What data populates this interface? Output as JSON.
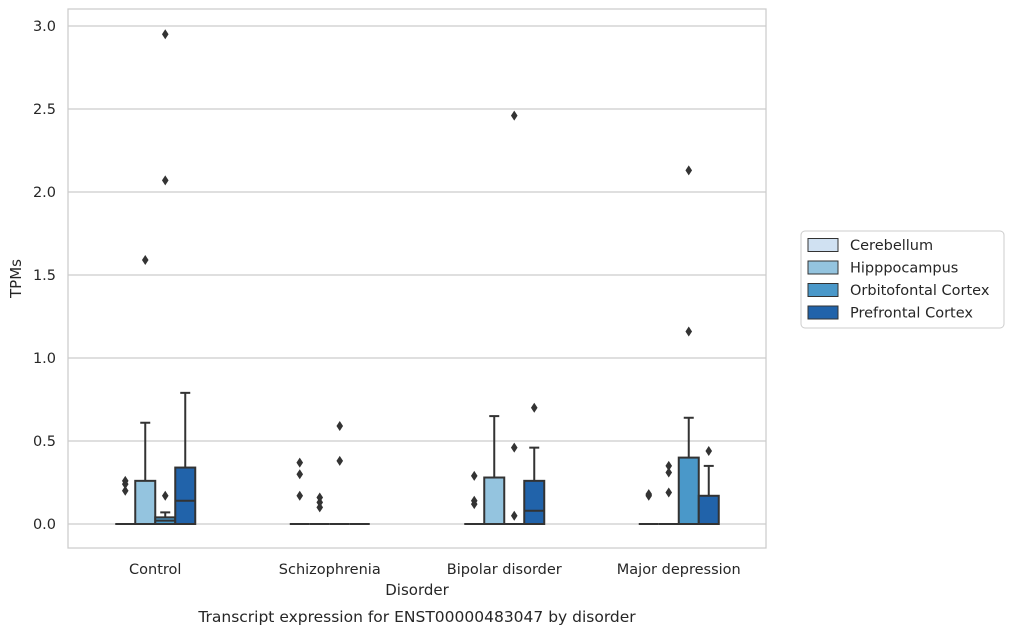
{
  "chart_data": {
    "type": "box",
    "caption": "Transcript expression for ENST00000483047 by disorder",
    "xlabel": "Disorder",
    "ylabel": "TPMs",
    "ylim": [
      -0.14,
      3.1
    ],
    "yticks": [
      "0.0",
      "0.5",
      "1.0",
      "1.5",
      "2.0",
      "2.5",
      "3.0"
    ],
    "grid": "horizontal",
    "legend_position": "right",
    "categories": [
      "Control",
      "Schizophrenia",
      "Bipolar disorder",
      "Major depression"
    ],
    "series": [
      {
        "name": "Cerebellum",
        "color": "#d0e1f2",
        "boxes": [
          {
            "q1": 0,
            "median": 0,
            "q3": 0,
            "whisker_low": 0,
            "whisker_high": 0,
            "outliers": [
              0.2,
              0.24,
              0.26
            ]
          },
          {
            "q1": 0,
            "median": 0,
            "q3": 0,
            "whisker_low": 0,
            "whisker_high": 0,
            "outliers": [
              0.17,
              0.3,
              0.37
            ]
          },
          {
            "q1": 0,
            "median": 0,
            "q3": 0,
            "whisker_low": 0,
            "whisker_high": 0,
            "outliers": [
              0.12,
              0.14,
              0.29
            ]
          },
          {
            "q1": 0,
            "median": 0,
            "q3": 0,
            "whisker_low": 0,
            "whisker_high": 0,
            "outliers": [
              0.17,
              0.18
            ]
          }
        ]
      },
      {
        "name": "Hipppocampus",
        "color": "#94c4df",
        "boxes": [
          {
            "q1": 0,
            "median": 0,
            "q3": 0.26,
            "whisker_low": 0,
            "whisker_high": 0.61,
            "outliers": [
              1.59
            ]
          },
          {
            "q1": 0,
            "median": 0,
            "q3": 0,
            "whisker_low": 0,
            "whisker_high": 0,
            "outliers": [
              0.1,
              0.13,
              0.16
            ]
          },
          {
            "q1": 0,
            "median": 0,
            "q3": 0.28,
            "whisker_low": 0,
            "whisker_high": 0.65,
            "outliers": []
          },
          {
            "q1": 0,
            "median": 0,
            "q3": 0,
            "whisker_low": 0,
            "whisker_high": 0,
            "outliers": [
              0.19,
              0.31,
              0.35
            ]
          }
        ]
      },
      {
        "name": "Orbitofontal Cortex",
        "color": "#4a98c9",
        "boxes": [
          {
            "q1": 0,
            "median": 0.02,
            "q3": 0.04,
            "whisker_low": 0,
            "whisker_high": 0.07,
            "outliers": [
              0.17,
              2.07,
              2.95
            ]
          },
          {
            "q1": 0,
            "median": 0,
            "q3": 0,
            "whisker_low": 0,
            "whisker_high": 0,
            "outliers": [
              0.38,
              0.59
            ]
          },
          {
            "q1": 0,
            "median": 0,
            "q3": 0,
            "whisker_low": 0,
            "whisker_high": 0,
            "outliers": [
              0.05,
              0.46,
              2.46
            ]
          },
          {
            "q1": 0,
            "median": 0,
            "q3": 0.4,
            "whisker_low": 0,
            "whisker_high": 0.64,
            "outliers": [
              1.16,
              2.13
            ]
          }
        ]
      },
      {
        "name": "Prefrontal Cortex",
        "color": "#2163aa",
        "boxes": [
          {
            "q1": 0,
            "median": 0.14,
            "q3": 0.34,
            "whisker_low": 0,
            "whisker_high": 0.79,
            "outliers": []
          },
          {
            "q1": 0,
            "median": 0,
            "q3": 0,
            "whisker_low": 0,
            "whisker_high": 0,
            "outliers": []
          },
          {
            "q1": 0,
            "median": 0.08,
            "q3": 0.26,
            "whisker_low": 0,
            "whisker_high": 0.46,
            "outliers": [
              0.7
            ]
          },
          {
            "q1": 0,
            "median": 0,
            "q3": 0.17,
            "whisker_low": 0,
            "whisker_high": 0.35,
            "outliers": [
              0.44
            ]
          }
        ]
      }
    ]
  }
}
